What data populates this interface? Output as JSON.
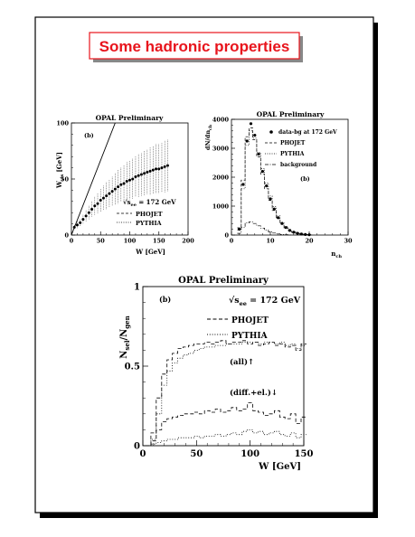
{
  "slide_title": "Some hadronic properties",
  "colors": {
    "title_red": "#e8141c",
    "title_bg": "#ffffff",
    "shadow": "#000000"
  },
  "chart_data": [
    {
      "type": "scatter",
      "title": "OPAL Preliminary",
      "panel_label": "(b)",
      "xlabel": "W [GeV]",
      "ylabel": "W",
      "ylabel_sub": "vis",
      "ylabel_unit": "[GeV]",
      "xlim": [
        0,
        200
      ],
      "ylim": [
        0,
        100
      ],
      "xticks": [
        0,
        50,
        100,
        150,
        200
      ],
      "yticks": [
        0,
        50,
        100
      ],
      "energy_label": "√s",
      "energy_sub": "ee",
      "energy_value": " = 172 GeV",
      "legend": [
        {
          "name": "PHOJET",
          "style": "dashed"
        },
        {
          "name": "PYTHIA",
          "style": "dotted"
        }
      ],
      "diagonal": {
        "x": [
          0,
          75
        ],
        "y": [
          0,
          100
        ]
      },
      "series": [
        {
          "name": "data",
          "x": [
            5,
            10,
            15,
            20,
            25,
            30,
            35,
            40,
            45,
            50,
            55,
            60,
            65,
            70,
            75,
            80,
            85,
            90,
            95,
            100,
            105,
            110,
            115,
            120,
            125,
            130,
            135,
            140,
            145,
            150,
            155,
            160,
            165
          ],
          "y": [
            7,
            9,
            11,
            14,
            17,
            20,
            23,
            26,
            28,
            31,
            33,
            35,
            37,
            39,
            41,
            43,
            45,
            46,
            48,
            49,
            50,
            52,
            53,
            54,
            55,
            56,
            57,
            58,
            59,
            59,
            60,
            61,
            62
          ],
          "yerr": [
            2,
            3,
            3,
            4,
            5,
            6,
            7,
            8,
            9,
            10,
            11,
            12,
            12,
            13,
            14,
            15,
            15,
            16,
            17,
            17,
            18,
            18,
            19,
            19,
            20,
            20,
            21,
            21,
            22,
            22,
            22,
            23,
            23
          ]
        }
      ]
    },
    {
      "type": "bar",
      "title": "OPAL Preliminary",
      "panel_label": "(b)",
      "xlabel": "n",
      "xlabel_sub": "ch",
      "ylabel": "dN/dn",
      "ylabel_sub": "ch",
      "xlim": [
        0,
        30
      ],
      "ylim": [
        0,
        4000
      ],
      "xticks": [
        0,
        10,
        20,
        30
      ],
      "yticks": [
        0,
        1000,
        2000,
        3000,
        4000
      ],
      "legend": [
        {
          "name": "data-bg at 172 GeV",
          "style": "marker"
        },
        {
          "name": "PHOJET",
          "style": "dashed"
        },
        {
          "name": "PYTHIA",
          "style": "dotted"
        },
        {
          "name": "background",
          "style": "dashdot"
        }
      ],
      "series": [
        {
          "name": "data-bg at 172 GeV",
          "x": [
            2,
            3,
            4,
            5,
            6,
            7,
            8,
            9,
            10,
            11,
            12,
            13,
            14,
            15,
            16,
            17,
            18,
            19,
            20
          ],
          "y": [
            200,
            1750,
            3250,
            3850,
            3450,
            2800,
            2200,
            1700,
            1250,
            900,
            600,
            400,
            260,
            160,
            100,
            60,
            35,
            20,
            10
          ]
        },
        {
          "name": "PHOJET",
          "x": [
            2,
            3,
            4,
            5,
            6,
            7,
            8,
            9,
            10,
            11,
            12,
            13,
            14,
            15,
            16,
            17,
            18,
            19,
            20
          ],
          "y": [
            250,
            1900,
            3400,
            3700,
            3300,
            2700,
            2100,
            1600,
            1200,
            850,
            570,
            380,
            250,
            150,
            95,
            55,
            30,
            18,
            9
          ]
        },
        {
          "name": "PYTHIA",
          "x": [
            2,
            3,
            4,
            5,
            6,
            7,
            8,
            9,
            10,
            11,
            12,
            13,
            14,
            15,
            16,
            17,
            18,
            19,
            20
          ],
          "y": [
            180,
            1600,
            3100,
            3600,
            3350,
            2850,
            2300,
            1800,
            1350,
            980,
            660,
            440,
            290,
            180,
            110,
            65,
            38,
            22,
            12
          ]
        },
        {
          "name": "background",
          "x": [
            2,
            3,
            4,
            5,
            6,
            7,
            8,
            9,
            10,
            11,
            12,
            13,
            14,
            15
          ],
          "y": [
            60,
            260,
            420,
            460,
            400,
            320,
            240,
            170,
            110,
            70,
            40,
            22,
            12,
            6
          ]
        }
      ]
    },
    {
      "type": "line",
      "title": "OPAL Preliminary",
      "panel_label": "(b)",
      "xlabel": "W [GeV]",
      "ylabel": "N",
      "ylabel_sub1": "sel",
      "ylabel_mid": "/N",
      "ylabel_sub2": "gen",
      "xlim": [
        0,
        150
      ],
      "ylim": [
        0,
        1
      ],
      "xticks": [
        0,
        50,
        100,
        150
      ],
      "yticks": [
        0,
        0.5,
        1
      ],
      "ytick_labels": [
        "0",
        "0.5",
        "1"
      ],
      "energy_label": "√s",
      "energy_sub": "ee",
      "energy_value": " = 172 GeV",
      "legend": [
        {
          "name": "PHOJET",
          "style": "dashed"
        },
        {
          "name": "PYTHIA",
          "style": "dotted"
        }
      ],
      "annotations": [
        {
          "text": "(all)↑"
        },
        {
          "text": "(diff.+el.)↓"
        }
      ],
      "series": [
        {
          "name": "PHOJET",
          "group": "all",
          "x": [
            5,
            10,
            15,
            20,
            25,
            30,
            35,
            40,
            45,
            50,
            55,
            60,
            65,
            70,
            75,
            80,
            85,
            90,
            95,
            100,
            105,
            110,
            115,
            120,
            125,
            130,
            135,
            140,
            145,
            150
          ],
          "y": [
            0.0,
            0.08,
            0.3,
            0.45,
            0.54,
            0.58,
            0.61,
            0.62,
            0.63,
            0.64,
            0.64,
            0.65,
            0.64,
            0.65,
            0.66,
            0.64,
            0.65,
            0.65,
            0.66,
            0.64,
            0.65,
            0.63,
            0.64,
            0.65,
            0.63,
            0.64,
            0.62,
            0.63,
            0.6,
            0.64
          ]
        },
        {
          "name": "PYTHIA",
          "group": "all",
          "x": [
            5,
            10,
            15,
            20,
            25,
            30,
            35,
            40,
            45,
            50,
            55,
            60,
            65,
            70,
            75,
            80,
            85,
            90,
            95,
            100,
            105,
            110,
            115,
            120,
            125,
            130,
            135,
            140,
            145,
            150
          ],
          "y": [
            0.0,
            0.04,
            0.2,
            0.38,
            0.47,
            0.52,
            0.55,
            0.57,
            0.58,
            0.6,
            0.61,
            0.62,
            0.62,
            0.63,
            0.63,
            0.64,
            0.64,
            0.64,
            0.65,
            0.65,
            0.65,
            0.64,
            0.65,
            0.65,
            0.64,
            0.65,
            0.63,
            0.64,
            0.61,
            0.63
          ]
        },
        {
          "name": "PHOJET",
          "group": "diff.+el.",
          "x": [
            5,
            10,
            15,
            20,
            25,
            30,
            35,
            40,
            45,
            50,
            55,
            60,
            65,
            70,
            75,
            80,
            85,
            90,
            95,
            100,
            105,
            110,
            115,
            120,
            125,
            130,
            135,
            140,
            145,
            150
          ],
          "y": [
            0.0,
            0.03,
            0.1,
            0.15,
            0.17,
            0.18,
            0.19,
            0.2,
            0.2,
            0.21,
            0.2,
            0.22,
            0.21,
            0.23,
            0.21,
            0.22,
            0.24,
            0.22,
            0.23,
            0.27,
            0.22,
            0.21,
            0.19,
            0.2,
            0.22,
            0.18,
            0.17,
            0.2,
            0.14,
            0.18
          ]
        },
        {
          "name": "PYTHIA",
          "group": "diff.+el.",
          "x": [
            5,
            10,
            15,
            20,
            25,
            30,
            35,
            40,
            45,
            50,
            55,
            60,
            65,
            70,
            75,
            80,
            85,
            90,
            95,
            100,
            105,
            110,
            115,
            120,
            125,
            130,
            135,
            140,
            145,
            150
          ],
          "y": [
            0.0,
            0.01,
            0.02,
            0.03,
            0.04,
            0.04,
            0.05,
            0.05,
            0.05,
            0.06,
            0.05,
            0.06,
            0.06,
            0.07,
            0.06,
            0.07,
            0.08,
            0.07,
            0.09,
            0.1,
            0.08,
            0.09,
            0.07,
            0.08,
            0.09,
            0.07,
            0.06,
            0.08,
            0.05,
            0.07
          ]
        }
      ]
    }
  ]
}
